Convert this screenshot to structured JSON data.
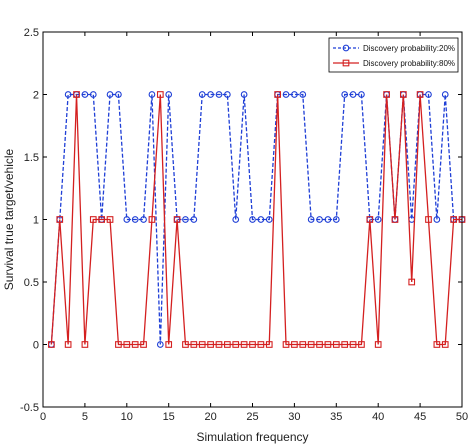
{
  "chart_data": {
    "type": "line",
    "xlabel": "Simulation frequency",
    "ylabel": "Survival true target/vehicle",
    "xlim": [
      0,
      50
    ],
    "ylim": [
      -0.5,
      2.5
    ],
    "xticks": [
      0,
      5,
      10,
      15,
      20,
      25,
      30,
      35,
      40,
      45,
      50
    ],
    "yticks": [
      -0.5,
      0,
      0.5,
      1,
      1.5,
      2,
      2.5
    ],
    "grid": false,
    "legend_position": "top-right",
    "x": [
      1,
      2,
      3,
      4,
      5,
      6,
      7,
      8,
      9,
      10,
      11,
      12,
      13,
      14,
      15,
      16,
      17,
      18,
      19,
      20,
      21,
      22,
      23,
      24,
      25,
      26,
      27,
      28,
      29,
      30,
      31,
      32,
      33,
      34,
      35,
      36,
      37,
      38,
      39,
      40,
      41,
      42,
      43,
      44,
      45,
      46,
      47,
      48,
      49,
      50
    ],
    "series": [
      {
        "name": "Discovery probability:20%",
        "color": "#1f3fd6",
        "line_style": "dashed",
        "marker": "circle",
        "values": [
          0,
          1,
          2,
          2,
          2,
          2,
          1,
          2,
          2,
          1,
          1,
          1,
          2,
          0,
          2,
          1,
          1,
          1,
          2,
          2,
          2,
          2,
          1,
          2,
          1,
          1,
          1,
          2,
          2,
          2,
          2,
          1,
          1,
          1,
          1,
          2,
          2,
          2,
          1,
          1,
          2,
          1,
          2,
          1,
          2,
          2,
          1,
          2,
          1,
          1
        ]
      },
      {
        "name": "Discovery probability:80%",
        "color": "#d42020",
        "line_style": "solid",
        "marker": "square",
        "values": [
          0,
          1,
          0,
          2,
          0,
          1,
          1,
          1,
          0,
          0,
          0,
          0,
          1,
          2,
          0,
          1,
          0,
          0,
          0,
          0,
          0,
          0,
          0,
          0,
          0,
          0,
          0,
          2,
          0,
          0,
          0,
          0,
          0,
          0,
          0,
          0,
          0,
          0,
          1,
          0,
          2,
          1,
          2,
          0.5,
          2,
          1,
          0,
          0,
          1,
          1
        ]
      }
    ]
  }
}
